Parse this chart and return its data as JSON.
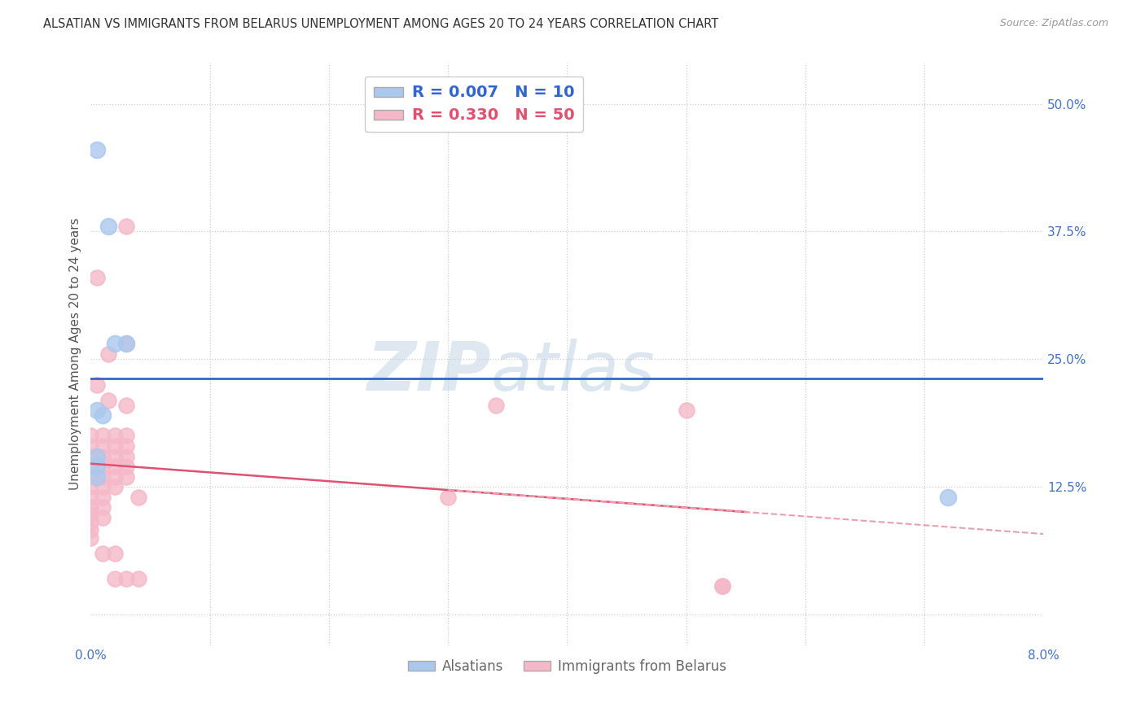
{
  "title": "ALSATIAN VS IMMIGRANTS FROM BELARUS UNEMPLOYMENT AMONG AGES 20 TO 24 YEARS CORRELATION CHART",
  "source": "Source: ZipAtlas.com",
  "ylabel": "Unemployment Among Ages 20 to 24 years",
  "x_min": 0.0,
  "x_max": 0.08,
  "y_min": -0.03,
  "y_max": 0.54,
  "y_ticks": [
    0.0,
    0.125,
    0.25,
    0.375,
    0.5
  ],
  "y_tick_labels": [
    "",
    "12.5%",
    "25.0%",
    "37.5%",
    "50.0%"
  ],
  "grid_color": "#cccccc",
  "background_color": "#ffffff",
  "alsatian_color": "#aac8ee",
  "belarus_color": "#f5b8c8",
  "alsatian_R": 0.007,
  "alsatian_N": 10,
  "belarus_R": 0.33,
  "belarus_N": 50,
  "watermark_zip": "ZIP",
  "watermark_atlas": "atlas",
  "alsatian_dots": [
    [
      0.0005,
      0.455
    ],
    [
      0.0015,
      0.38
    ],
    [
      0.002,
      0.265
    ],
    [
      0.003,
      0.265
    ],
    [
      0.0005,
      0.2
    ],
    [
      0.001,
      0.195
    ],
    [
      0.0005,
      0.155
    ],
    [
      0.0005,
      0.145
    ],
    [
      0.0005,
      0.135
    ],
    [
      0.072,
      0.115
    ]
  ],
  "belarus_dots": [
    [
      0.0,
      0.175
    ],
    [
      0.0,
      0.165
    ],
    [
      0.0,
      0.155
    ],
    [
      0.0,
      0.145
    ],
    [
      0.0,
      0.135
    ],
    [
      0.0,
      0.125
    ],
    [
      0.0,
      0.115
    ],
    [
      0.0,
      0.105
    ],
    [
      0.0,
      0.098
    ],
    [
      0.0,
      0.09
    ],
    [
      0.0,
      0.083
    ],
    [
      0.0,
      0.075
    ],
    [
      0.0005,
      0.33
    ],
    [
      0.0005,
      0.225
    ],
    [
      0.001,
      0.175
    ],
    [
      0.001,
      0.165
    ],
    [
      0.001,
      0.155
    ],
    [
      0.001,
      0.145
    ],
    [
      0.001,
      0.135
    ],
    [
      0.001,
      0.125
    ],
    [
      0.001,
      0.115
    ],
    [
      0.001,
      0.105
    ],
    [
      0.001,
      0.095
    ],
    [
      0.001,
      0.06
    ],
    [
      0.0015,
      0.255
    ],
    [
      0.0015,
      0.21
    ],
    [
      0.002,
      0.175
    ],
    [
      0.002,
      0.165
    ],
    [
      0.002,
      0.155
    ],
    [
      0.002,
      0.145
    ],
    [
      0.002,
      0.135
    ],
    [
      0.002,
      0.125
    ],
    [
      0.002,
      0.06
    ],
    [
      0.002,
      0.035
    ],
    [
      0.003,
      0.38
    ],
    [
      0.003,
      0.265
    ],
    [
      0.003,
      0.205
    ],
    [
      0.003,
      0.175
    ],
    [
      0.003,
      0.165
    ],
    [
      0.003,
      0.155
    ],
    [
      0.003,
      0.145
    ],
    [
      0.003,
      0.135
    ],
    [
      0.003,
      0.035
    ],
    [
      0.004,
      0.115
    ],
    [
      0.004,
      0.035
    ],
    [
      0.03,
      0.115
    ],
    [
      0.034,
      0.205
    ],
    [
      0.05,
      0.2
    ],
    [
      0.053,
      0.028
    ],
    [
      0.053,
      0.028
    ]
  ],
  "alsatian_line_color": "#3366cc",
  "belarus_line_color": "#e05070",
  "belarus_dash_color": "#e8a0b0",
  "title_fontsize": 10.5,
  "axis_label_fontsize": 11,
  "tick_fontsize": 11,
  "legend_fontsize": 13
}
